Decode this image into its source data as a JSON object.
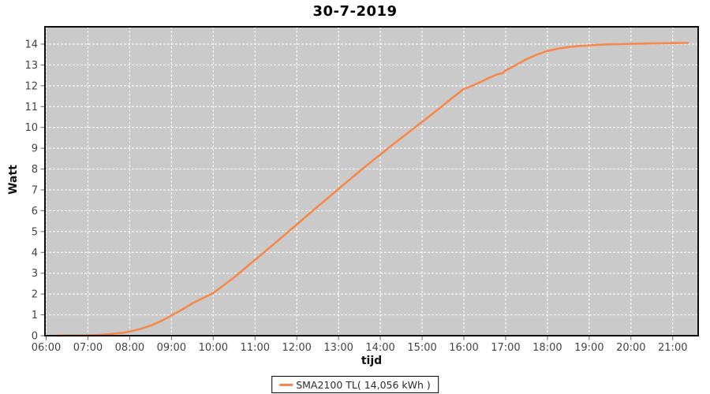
{
  "title": "30-7-2019",
  "colors": {
    "page_bg": "#ffffff",
    "plot_bg": "#cacaca",
    "gridline": "#ffffff",
    "series_line": "#f7884c",
    "plot_border": "#0d0d0d",
    "tick_text": "#444444",
    "axis_title_text": "#111111"
  },
  "chart_data": {
    "type": "line",
    "title": "30-7-2019",
    "xlabel": "tijd",
    "ylabel": "Watt",
    "grid": "on",
    "legend_position": "bottom-center",
    "x_axis": {
      "tick_labels": [
        "06:00",
        "07:00",
        "08:00",
        "09:00",
        "10:00",
        "11:00",
        "12:00",
        "13:00",
        "14:00",
        "15:00",
        "16:00",
        "17:00",
        "18:00",
        "19:00",
        "20:00",
        "21:00"
      ],
      "tick_hours": [
        6,
        7,
        8,
        9,
        10,
        11,
        12,
        13,
        14,
        15,
        16,
        17,
        18,
        19,
        20,
        21
      ],
      "range_hours": [
        5.97,
        21.61
      ]
    },
    "y_axis": {
      "tick_labels": [
        "0",
        "1",
        "2",
        "3",
        "4",
        "5",
        "6",
        "7",
        "8",
        "9",
        "10",
        "11",
        "12",
        "13",
        "14"
      ],
      "tick_values": [
        0,
        1,
        2,
        3,
        4,
        5,
        6,
        7,
        8,
        9,
        10,
        11,
        12,
        13,
        14
      ],
      "range": [
        0,
        14.83
      ]
    },
    "legend": [
      {
        "label": "SMA2100 TL( 14,056 kWh )",
        "color": "#f7884c"
      }
    ],
    "series": [
      {
        "name": "SMA2100 TL( 14,056 kWh )",
        "color": "#f7884c",
        "final_total_kwh": "14,056",
        "points": [
          [
            6.27,
            0.0
          ],
          [
            6.5,
            0.01
          ],
          [
            6.8,
            0.01
          ],
          [
            7.0,
            0.02
          ],
          [
            7.3,
            0.04
          ],
          [
            7.5,
            0.07
          ],
          [
            7.8,
            0.13
          ],
          [
            8.0,
            0.2
          ],
          [
            8.25,
            0.32
          ],
          [
            8.5,
            0.48
          ],
          [
            8.75,
            0.7
          ],
          [
            9.0,
            0.97
          ],
          [
            9.25,
            1.25
          ],
          [
            9.5,
            1.55
          ],
          [
            9.75,
            1.8
          ],
          [
            10.0,
            2.05
          ],
          [
            10.25,
            2.42
          ],
          [
            10.5,
            2.8
          ],
          [
            10.75,
            3.22
          ],
          [
            11.0,
            3.64
          ],
          [
            11.25,
            4.06
          ],
          [
            11.5,
            4.48
          ],
          [
            11.75,
            4.91
          ],
          [
            12.0,
            5.34
          ],
          [
            12.25,
            5.77
          ],
          [
            12.5,
            6.2
          ],
          [
            12.75,
            6.62
          ],
          [
            13.0,
            7.05
          ],
          [
            13.25,
            7.47
          ],
          [
            13.5,
            7.89
          ],
          [
            13.75,
            8.3
          ],
          [
            14.0,
            8.7
          ],
          [
            14.25,
            9.1
          ],
          [
            14.5,
            9.49
          ],
          [
            14.75,
            9.88
          ],
          [
            15.0,
            10.26
          ],
          [
            15.25,
            10.66
          ],
          [
            15.5,
            11.05
          ],
          [
            15.75,
            11.46
          ],
          [
            16.0,
            11.85
          ],
          [
            16.2,
            12.0
          ],
          [
            16.4,
            12.18
          ],
          [
            16.6,
            12.38
          ],
          [
            16.8,
            12.55
          ],
          [
            16.92,
            12.6
          ],
          [
            17.0,
            12.73
          ],
          [
            17.25,
            13.0
          ],
          [
            17.5,
            13.28
          ],
          [
            17.75,
            13.5
          ],
          [
            18.0,
            13.67
          ],
          [
            18.25,
            13.78
          ],
          [
            18.5,
            13.86
          ],
          [
            18.75,
            13.91
          ],
          [
            19.0,
            13.94
          ],
          [
            19.25,
            13.97
          ],
          [
            19.5,
            13.99
          ],
          [
            19.75,
            14.0
          ],
          [
            20.0,
            14.02
          ],
          [
            20.33,
            14.03
          ],
          [
            20.66,
            14.04
          ],
          [
            21.0,
            14.05
          ],
          [
            21.36,
            14.056
          ]
        ]
      }
    ]
  }
}
